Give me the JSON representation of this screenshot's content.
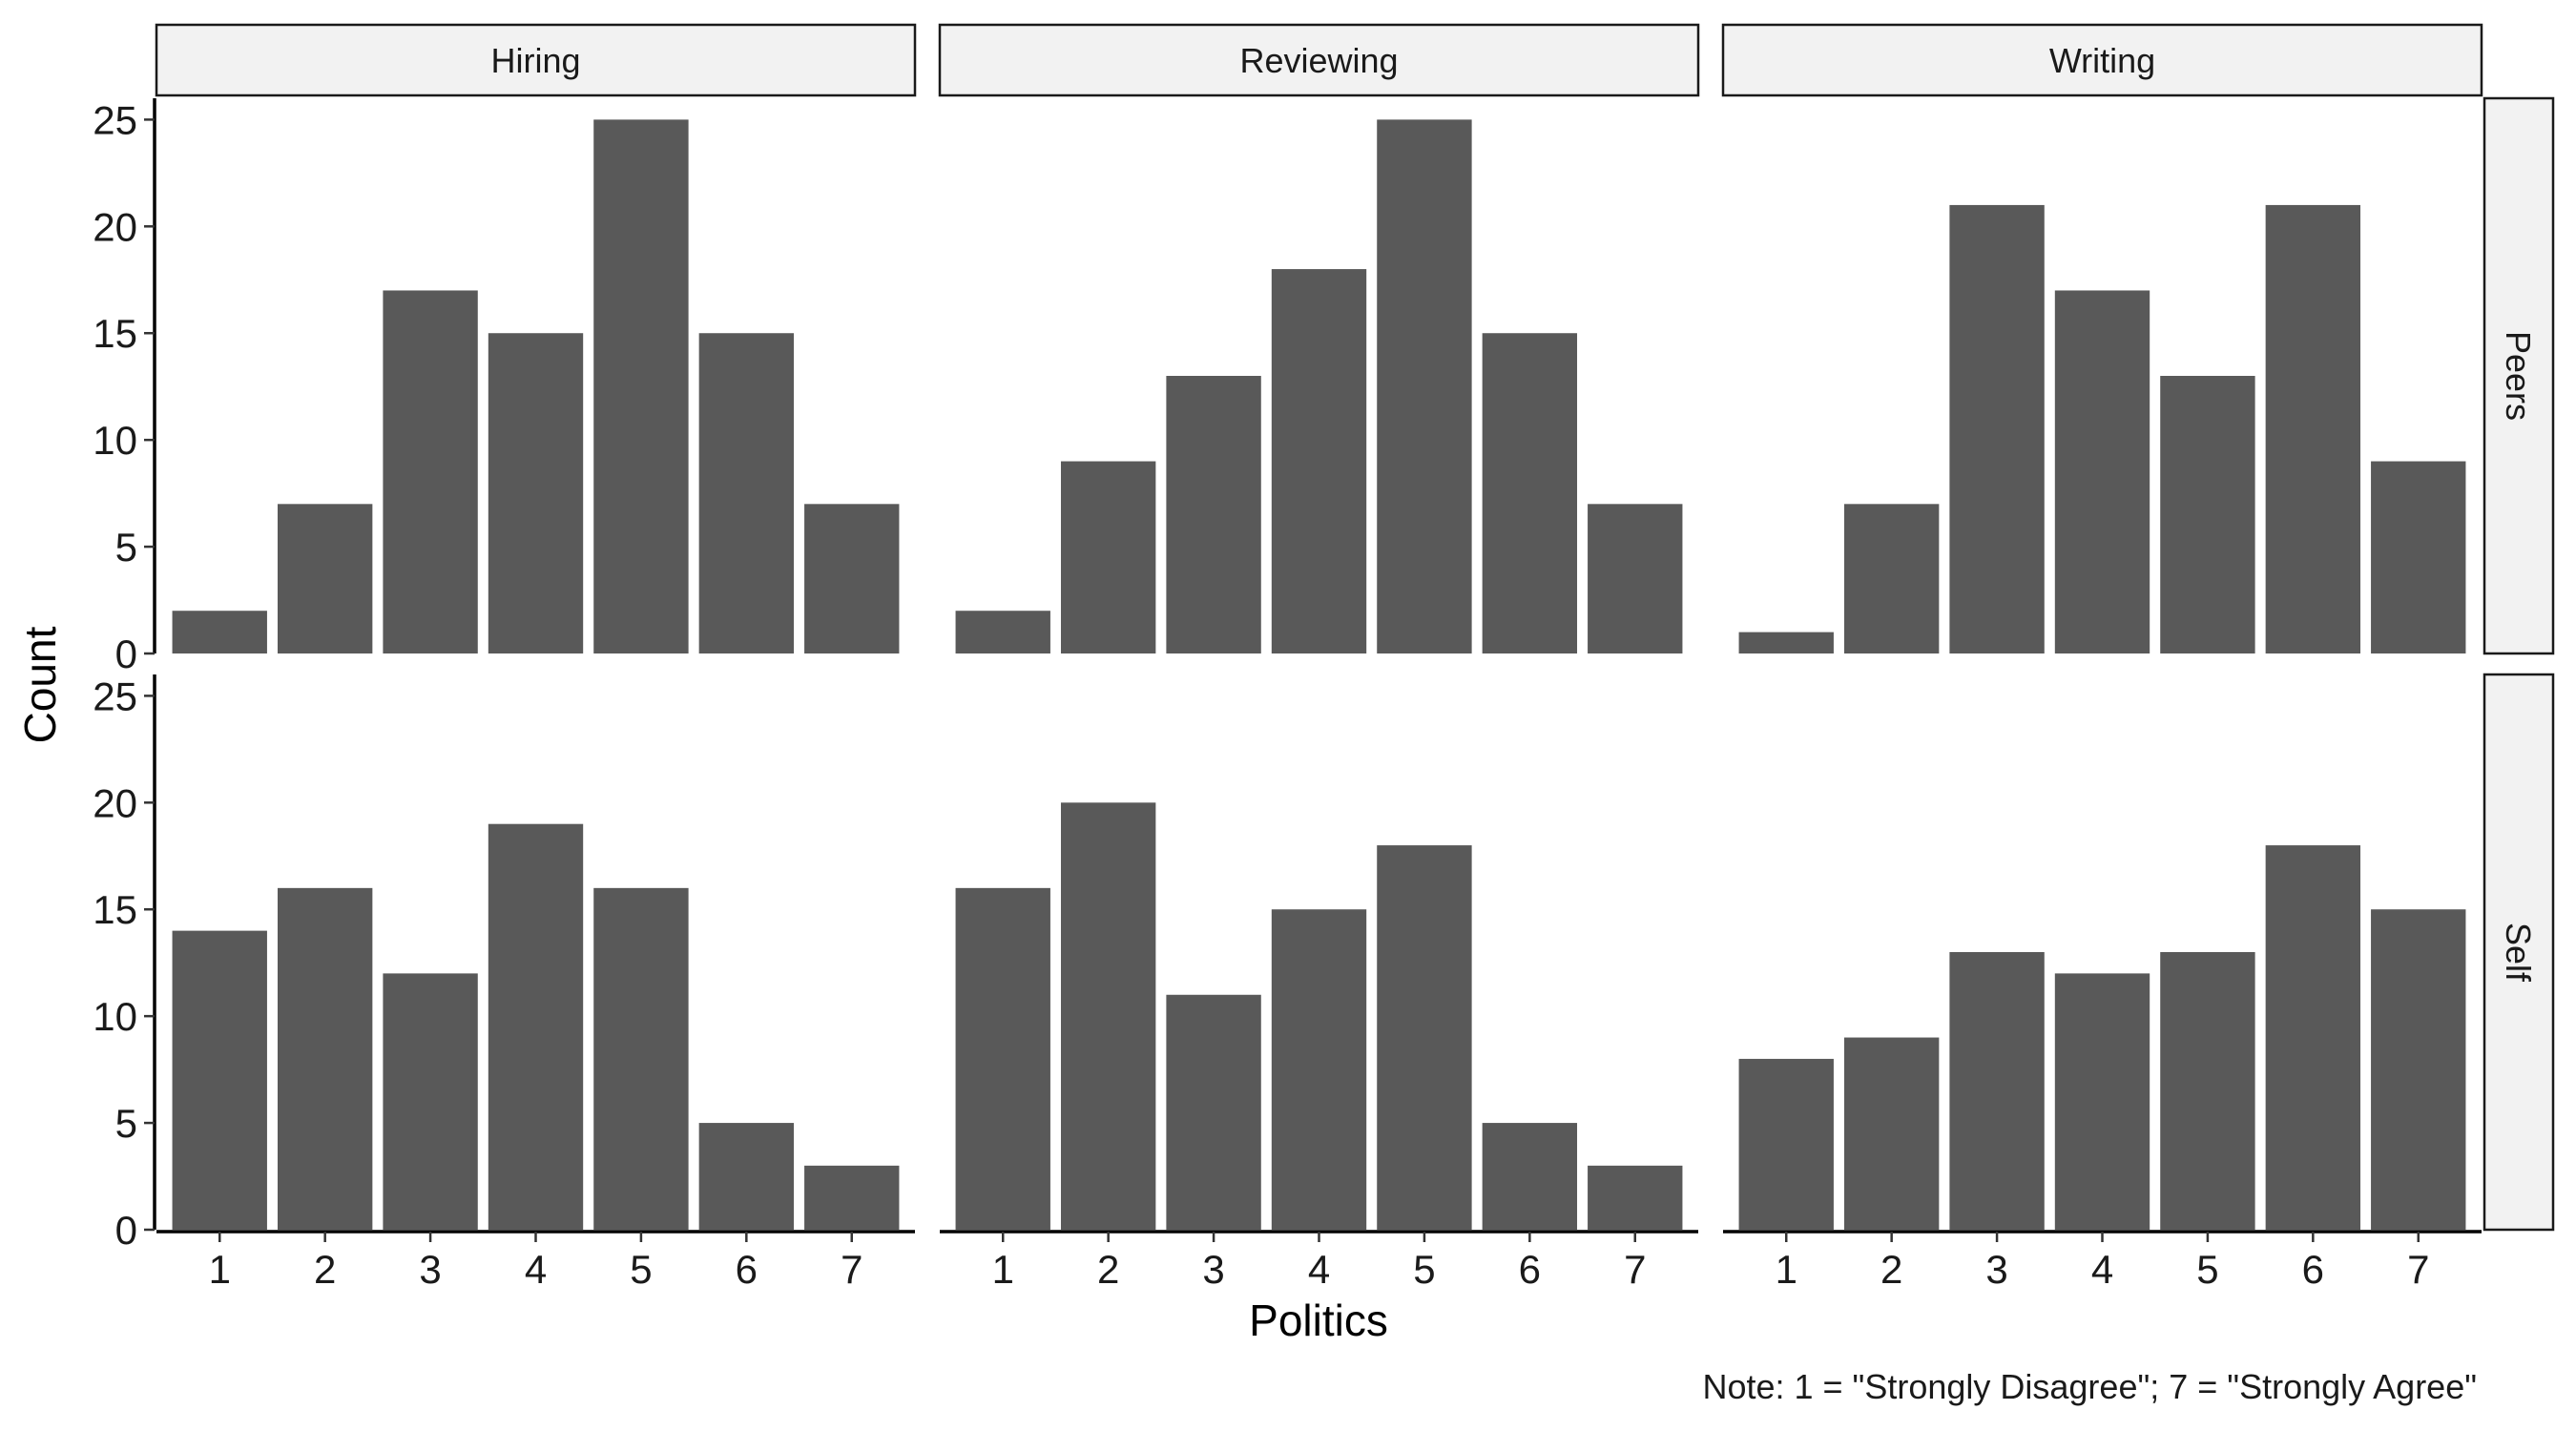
{
  "chart_data": {
    "type": "bar",
    "layout": "facet-grid",
    "categories": [
      "1",
      "2",
      "3",
      "4",
      "5",
      "6",
      "7"
    ],
    "col_facets": [
      "Hiring",
      "Reviewing",
      "Writing"
    ],
    "row_facets": [
      "Peers",
      "Self"
    ],
    "xlabel": "Politics",
    "ylabel": "Count",
    "ylim": [
      0,
      26
    ],
    "yticks": [
      0,
      5,
      10,
      15,
      20,
      25
    ],
    "bar_color": "#595959",
    "grid": false,
    "note": "Note: 1 = \"Strongly Disagree\"; 7 = \"Strongly Agree\"",
    "panels": [
      {
        "row": "Peers",
        "col": "Hiring",
        "values": [
          2,
          7,
          17,
          15,
          25,
          15,
          7
        ]
      },
      {
        "row": "Peers",
        "col": "Reviewing",
        "values": [
          2,
          9,
          13,
          18,
          25,
          15,
          7
        ]
      },
      {
        "row": "Peers",
        "col": "Writing",
        "values": [
          1,
          7,
          21,
          17,
          13,
          21,
          9
        ]
      },
      {
        "row": "Self",
        "col": "Hiring",
        "values": [
          14,
          16,
          12,
          19,
          16,
          5,
          3
        ]
      },
      {
        "row": "Self",
        "col": "Reviewing",
        "values": [
          16,
          20,
          11,
          15,
          18,
          5,
          3
        ]
      },
      {
        "row": "Self",
        "col": "Writing",
        "values": [
          8,
          9,
          13,
          12,
          13,
          18,
          15
        ]
      }
    ]
  }
}
